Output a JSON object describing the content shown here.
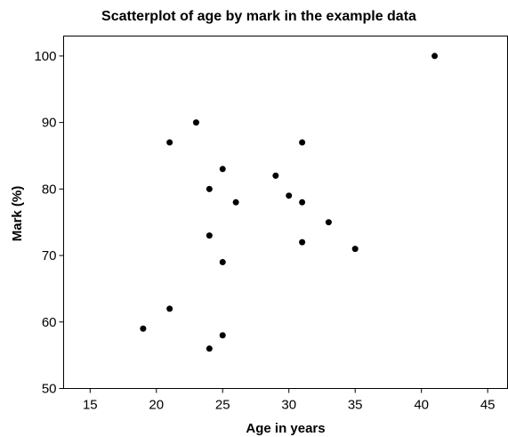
{
  "chart_data": {
    "type": "scatter",
    "title": "Scatterplot of age by mark in the example data",
    "xlabel": "Age in years",
    "ylabel": "Mark (%)",
    "xlim": [
      13,
      46.5
    ],
    "ylim": [
      50,
      103
    ],
    "xticks": [
      15,
      20,
      25,
      30,
      35,
      40,
      45
    ],
    "yticks": [
      50,
      60,
      70,
      80,
      90,
      100
    ],
    "grid": false,
    "points": [
      {
        "x": 19,
        "y": 59
      },
      {
        "x": 21,
        "y": 87
      },
      {
        "x": 21,
        "y": 62
      },
      {
        "x": 23,
        "y": 90
      },
      {
        "x": 24,
        "y": 80
      },
      {
        "x": 24,
        "y": 73
      },
      {
        "x": 24,
        "y": 56
      },
      {
        "x": 25,
        "y": 83
      },
      {
        "x": 25,
        "y": 69
      },
      {
        "x": 25,
        "y": 58
      },
      {
        "x": 26,
        "y": 78
      },
      {
        "x": 29,
        "y": 82
      },
      {
        "x": 30,
        "y": 79
      },
      {
        "x": 31,
        "y": 87
      },
      {
        "x": 31,
        "y": 78
      },
      {
        "x": 31,
        "y": 72
      },
      {
        "x": 33,
        "y": 75
      },
      {
        "x": 35,
        "y": 71
      },
      {
        "x": 41,
        "y": 100
      }
    ]
  }
}
